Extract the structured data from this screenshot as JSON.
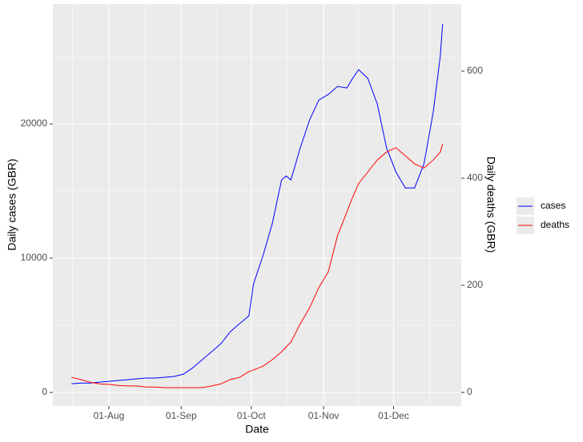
{
  "chart_data": {
    "type": "line",
    "x": [
      "16-Jul",
      "20-Jul",
      "24-Jul",
      "28-Jul",
      "01-Aug",
      "05-Aug",
      "09-Aug",
      "13-Aug",
      "17-Aug",
      "21-Aug",
      "25-Aug",
      "29-Aug",
      "02-Sep",
      "06-Sep",
      "10-Sep",
      "14-Sep",
      "18-Sep",
      "22-Sep",
      "26-Sep",
      "30-Sep",
      "02-Oct",
      "06-Oct",
      "10-Oct",
      "14-Oct",
      "16-Oct",
      "18-Oct",
      "22-Oct",
      "26-Oct",
      "30-Oct",
      "03-Nov",
      "07-Nov",
      "11-Nov",
      "13-Nov",
      "16-Nov",
      "20-Nov",
      "24-Nov",
      "28-Nov",
      "02-Dec",
      "06-Dec",
      "10-Dec",
      "14-Dec",
      "18-Dec",
      "21-Dec",
      "22-Dec"
    ],
    "series": [
      {
        "name": "cases",
        "color": "#0000ff",
        "values": [
          650,
          700,
          700,
          770,
          830,
          890,
          950,
          1010,
          1070,
          1070,
          1130,
          1190,
          1370,
          1840,
          2440,
          3030,
          3630,
          4520,
          5120,
          5710,
          8090,
          10170,
          12550,
          15830,
          16120,
          15830,
          18210,
          20290,
          21780,
          22190,
          22790,
          22670,
          23260,
          24040,
          23380,
          21480,
          18210,
          16420,
          15230,
          15230,
          17020,
          20880,
          25050,
          27430
        ]
      },
      {
        "name": "deaths",
        "color": "#ff0000",
        "axis": "y2",
        "values": [
          28,
          24,
          19,
          16,
          15,
          13,
          12,
          12,
          10,
          10,
          9,
          9,
          9,
          9,
          9,
          12,
          16,
          24,
          28,
          39,
          42,
          49,
          61,
          76,
          85,
          94,
          128,
          158,
          196,
          225,
          293,
          337,
          360,
          390,
          412,
          434,
          449,
          457,
          442,
          427,
          419,
          434,
          449,
          464
        ]
      }
    ],
    "x_label": "Date",
    "y_label": "Daily cases (GBR)",
    "y2_label": "Daily deaths (GBR)",
    "xlim": [
      "08-Jul",
      "30-Dec"
    ],
    "xticks": [
      "01-Aug",
      "01-Sep",
      "01-Oct",
      "01-Nov",
      "01-Dec"
    ],
    "ylim": [
      -1012,
      28929
    ],
    "yticks": [
      0,
      10000,
      20000
    ],
    "y2lim": [
      -25.4,
      725.4
    ],
    "y2ticks": [
      0,
      200,
      400,
      600
    ],
    "grid": true,
    "legend": "right"
  }
}
